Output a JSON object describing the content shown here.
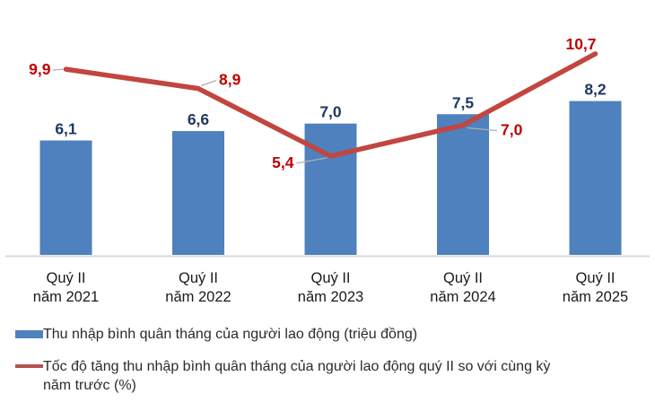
{
  "chart_data": {
    "type": "bar+line",
    "categories": [
      [
        "Quý II",
        "năm 2021"
      ],
      [
        "Quý II",
        "năm 2022"
      ],
      [
        "Quý II",
        "năm 2023"
      ],
      [
        "Quý II",
        "năm 2024"
      ],
      [
        "Quý II",
        "năm 2025"
      ]
    ],
    "series": [
      {
        "type": "bar",
        "name": "Thu nhập bình quân tháng của người lao động (triệu đồng)",
        "values": [
          6.1,
          6.6,
          7.0,
          7.5,
          8.2
        ],
        "labels": [
          "6,1",
          "6,6",
          "7,0",
          "7,5",
          "8,2"
        ],
        "color": "#4e81bd",
        "label_color": "#1f3864"
      },
      {
        "type": "line",
        "name": "Tốc độ tăng thu nhập bình quân tháng của người lao động quý II so với cùng kỳ năm trước (%)",
        "values": [
          9.9,
          8.9,
          5.4,
          7.0,
          10.7
        ],
        "labels": [
          "9,9",
          "8,9",
          "5,4",
          "7,0",
          "10,7"
        ],
        "color": "#c1463f",
        "label_color": "#c00000"
      }
    ],
    "title": "",
    "xlabel": "",
    "ylabel": "",
    "grid": false,
    "legend_position": "bottom",
    "axis_line_color": "#d9d9d9",
    "leader_line_color": "#b0b0b0",
    "category_label_color": "#1a1a1a",
    "background": "#ffffff"
  },
  "legend": {
    "items": [
      {
        "swatch": "bar",
        "color": "#4e81bd",
        "label": "Thu nhập bình quân tháng của người lao động (triệu đồng)"
      },
      {
        "swatch": "line",
        "color": "#b2524e",
        "label_line1": "Tốc độ tăng thu nhập bình quân tháng của người lao động quý II so với cùng kỳ",
        "label_line2": "năm trước (%)"
      }
    ]
  }
}
